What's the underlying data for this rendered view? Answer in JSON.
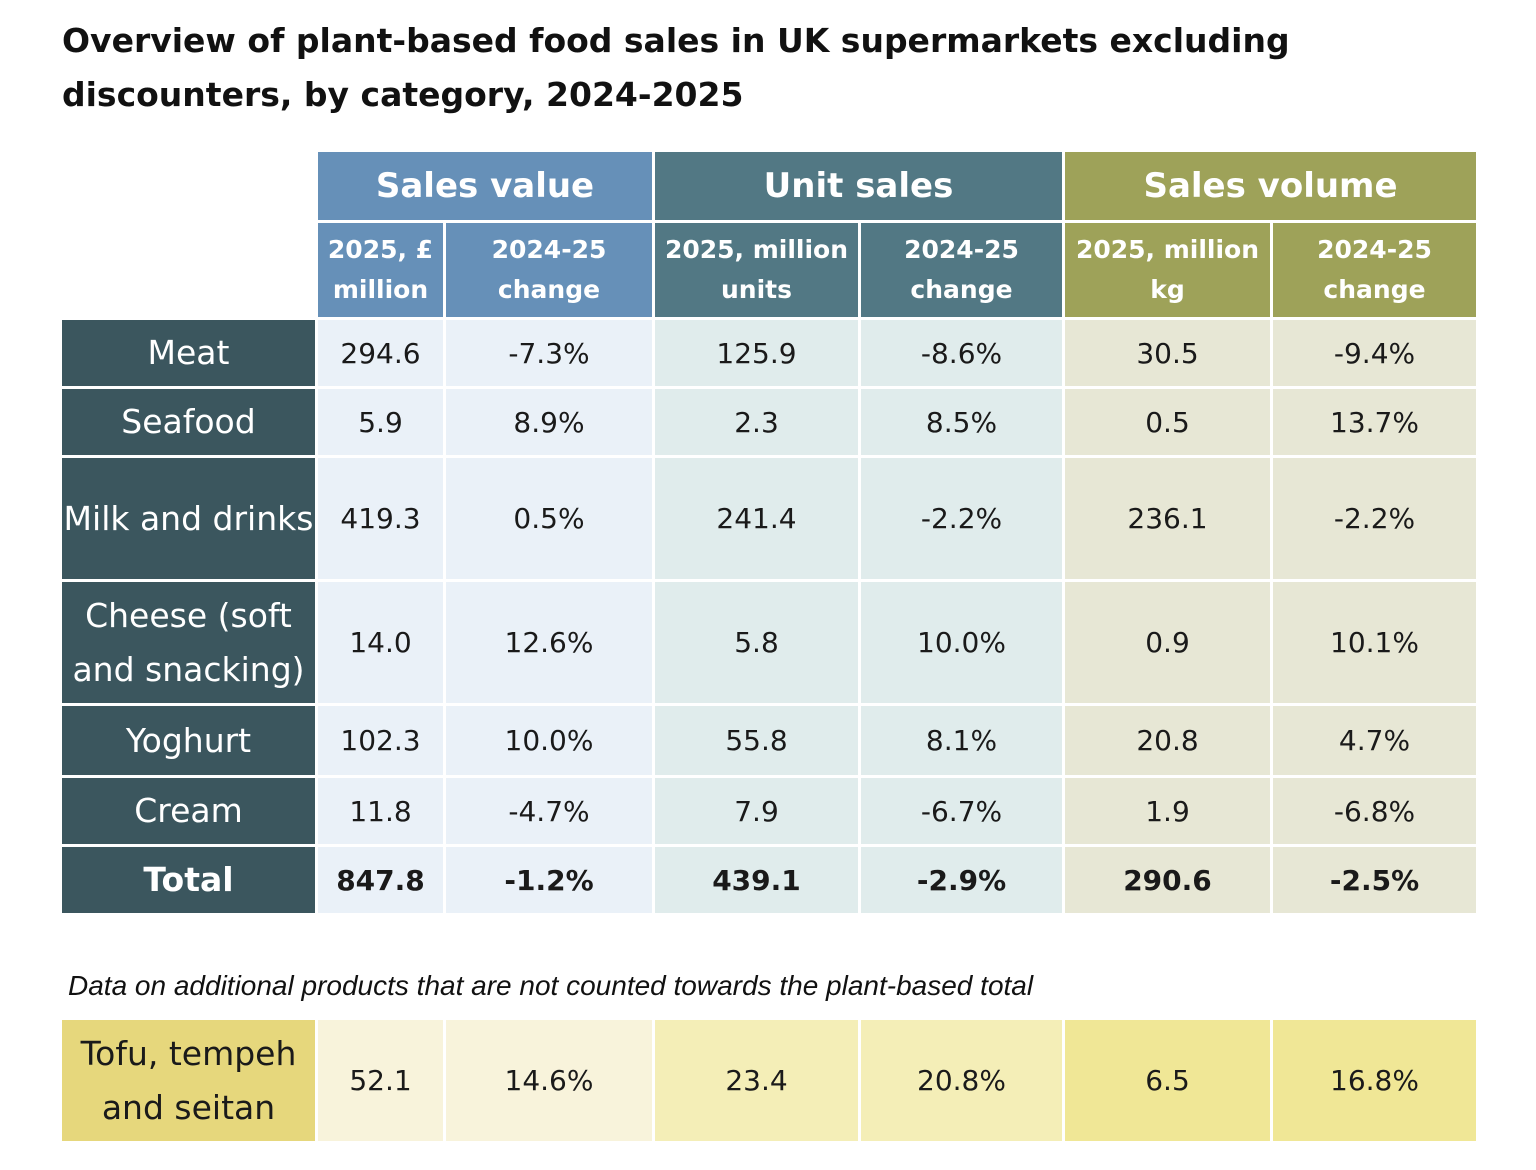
{
  "title": "Overview of plant-based food sales in UK supermarkets excluding discounters, by category, 2024-2025",
  "chart_data": {
    "type": "table",
    "groups": [
      "Sales value",
      "Unit sales",
      "Sales volume"
    ],
    "columns": [
      "2025, £ million",
      "2024-25 change",
      "2025, million units",
      "2024-25 change",
      "2025, million kg",
      "2024-25 change"
    ],
    "rows": [
      {
        "label": "Meat",
        "values": [
          "294.6",
          "-7.3%",
          "125.9",
          "-8.6%",
          "30.5",
          "-9.4%"
        ]
      },
      {
        "label": "Seafood",
        "values": [
          "5.9",
          "8.9%",
          "2.3",
          "8.5%",
          "0.5",
          "13.7%"
        ]
      },
      {
        "label": "Milk and drinks",
        "values": [
          "419.3",
          "0.5%",
          "241.4",
          "-2.2%",
          "236.1",
          "-2.2%"
        ]
      },
      {
        "label": "Cheese (soft and snacking)",
        "values": [
          "14.0",
          "12.6%",
          "5.8",
          "10.0%",
          "0.9",
          "10.1%"
        ]
      },
      {
        "label": "Yoghurt",
        "values": [
          "102.3",
          "10.0%",
          "55.8",
          "8.1%",
          "20.8",
          "4.7%"
        ]
      },
      {
        "label": "Cream",
        "values": [
          "11.8",
          "-4.7%",
          "7.9",
          "-6.7%",
          "1.9",
          "-6.8%"
        ]
      }
    ],
    "total": {
      "label": "Total",
      "values": [
        "847.8",
        "-1.2%",
        "439.1",
        "-2.9%",
        "290.6",
        "-2.5%"
      ]
    },
    "note": "Data on additional products that are not counted towards the plant-based total",
    "additional": [
      {
        "label": "Tofu, tempeh and seitan",
        "values": [
          "52.1",
          "14.6%",
          "23.4",
          "20.8%",
          "6.5",
          "16.8%"
        ]
      }
    ]
  },
  "colors": {
    "sales_value_header": "#6690b8",
    "unit_sales_header": "#527884",
    "sales_volume_header": "#9ea259",
    "row_label": "#3b565e",
    "additional_label": "#e6d77c"
  }
}
